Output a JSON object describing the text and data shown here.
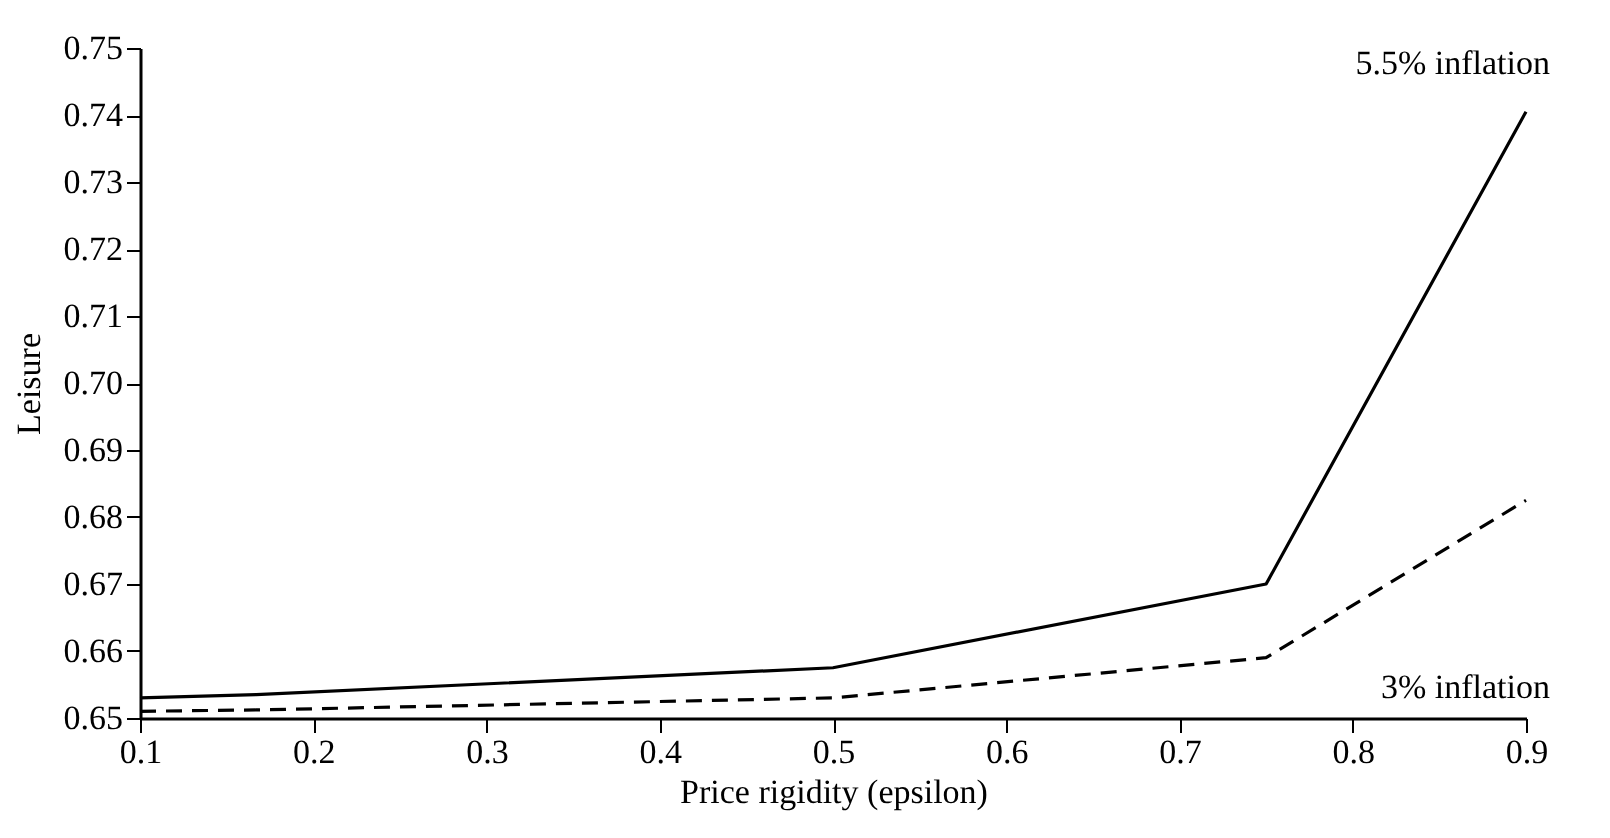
{
  "chart_data": {
    "type": "line",
    "xlabel": "Price rigidity (epsilon)",
    "ylabel": "Leisure",
    "x": [
      0.1,
      0.167,
      0.5,
      0.75,
      0.9
    ],
    "series": [
      {
        "name": "5.5% inflation",
        "color": "#000000",
        "line_style": "solid",
        "values": [
          0.653,
          0.6535,
          0.6575,
          0.67,
          0.7405
        ]
      },
      {
        "name": "3% inflation",
        "color": "#000000",
        "line_style": "dashed",
        "values": [
          0.651,
          0.6512,
          0.653,
          0.659,
          0.6825
        ]
      }
    ],
    "xlim": [
      0.1,
      0.9
    ],
    "xticks": [
      0.1,
      0.2,
      0.3,
      0.4,
      0.5,
      0.6,
      0.7,
      0.8,
      0.9
    ],
    "ylim": [
      0.65,
      0.75
    ],
    "yticks": [
      {
        "value": 0.65,
        "label": "0.65"
      },
      {
        "value": 0.66,
        "label": "0.66"
      },
      {
        "value": 0.67,
        "label": "0.67"
      },
      {
        "value": 0.68,
        "label": "0.68"
      },
      {
        "value": 0.69,
        "label": "0.69"
      },
      {
        "value": 0.7,
        "label": "0.70"
      },
      {
        "value": 0.71,
        "label": "0.71"
      },
      {
        "value": 0.72,
        "label": "0.72"
      },
      {
        "value": 0.73,
        "label": "0.73"
      },
      {
        "value": 0.74,
        "label": "0.74"
      },
      {
        "value": 0.75,
        "label": "0.75"
      }
    ],
    "grid": false,
    "marker": "none"
  }
}
